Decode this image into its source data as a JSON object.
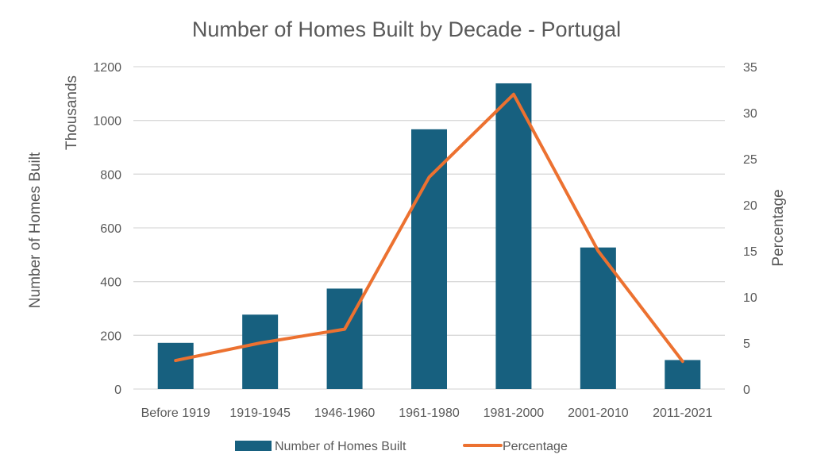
{
  "chart_data": {
    "type": "bar",
    "title": "Number of Homes Built by Decade - Portugal",
    "categories": [
      "Before 1919",
      "1919-1945",
      "1946-1960",
      "1961-1980",
      "1981-2000",
      "2001-2010",
      "2011-2021"
    ],
    "series": [
      {
        "name": "Number of Homes Built",
        "type": "bar",
        "axis": "left",
        "color": "#17607f",
        "values": [
          172,
          277,
          374,
          967,
          1138,
          527,
          108
        ]
      },
      {
        "name": "Percentage",
        "type": "line",
        "axis": "right",
        "color": "#ec7130",
        "values": [
          3.1,
          5.0,
          6.5,
          23.0,
          32.0,
          15.0,
          3.0
        ]
      }
    ],
    "y_left": {
      "label": "Number of Homes Built",
      "units_label": "Thousands",
      "range": [
        0,
        1200
      ],
      "ticks": [
        "0",
        "200",
        "400",
        "600",
        "800",
        "1000",
        "1200"
      ]
    },
    "y_right": {
      "label": "Percentage",
      "range": [
        0,
        35
      ],
      "ticks": [
        "0",
        "5",
        "10",
        "15",
        "20",
        "25",
        "30",
        "35"
      ]
    },
    "grid": true,
    "grid_color": "#d9d9d9",
    "legend_position": "bottom"
  }
}
